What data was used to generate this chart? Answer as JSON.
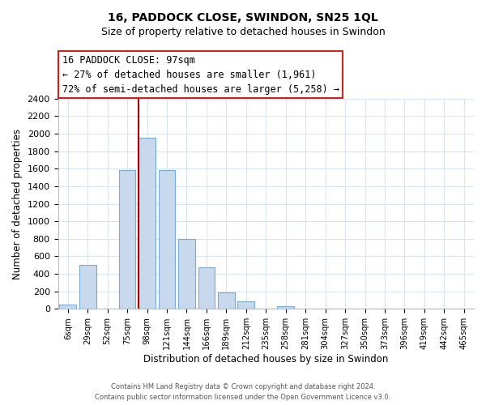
{
  "title": "16, PADDOCK CLOSE, SWINDON, SN25 1QL",
  "subtitle": "Size of property relative to detached houses in Swindon",
  "xlabel": "Distribution of detached houses by size in Swindon",
  "ylabel": "Number of detached properties",
  "bar_labels": [
    "6sqm",
    "29sqm",
    "52sqm",
    "75sqm",
    "98sqm",
    "121sqm",
    "144sqm",
    "166sqm",
    "189sqm",
    "212sqm",
    "235sqm",
    "258sqm",
    "281sqm",
    "304sqm",
    "327sqm",
    "350sqm",
    "373sqm",
    "396sqm",
    "419sqm",
    "442sqm",
    "465sqm"
  ],
  "bar_heights": [
    50,
    500,
    0,
    1580,
    1950,
    1580,
    800,
    470,
    190,
    90,
    0,
    30,
    0,
    0,
    0,
    0,
    0,
    0,
    0,
    0,
    0
  ],
  "bar_color": "#c8d9ee",
  "bar_edge_color": "#7aaad0",
  "ylim": [
    0,
    2400
  ],
  "yticks": [
    0,
    200,
    400,
    600,
    800,
    1000,
    1200,
    1400,
    1600,
    1800,
    2000,
    2200,
    2400
  ],
  "vline_x_index": 4,
  "vline_color": "#aa0000",
  "annotation_title": "16 PADDOCK CLOSE: 97sqm",
  "annotation_line1": "← 27% of detached houses are smaller (1,961)",
  "annotation_line2": "72% of semi-detached houses are larger (5,258) →",
  "footer_line1": "Contains HM Land Registry data © Crown copyright and database right 2024.",
  "footer_line2": "Contains public sector information licensed under the Open Government Licence v3.0.",
  "background_color": "#ffffff",
  "grid_color": "#d8e4f0"
}
